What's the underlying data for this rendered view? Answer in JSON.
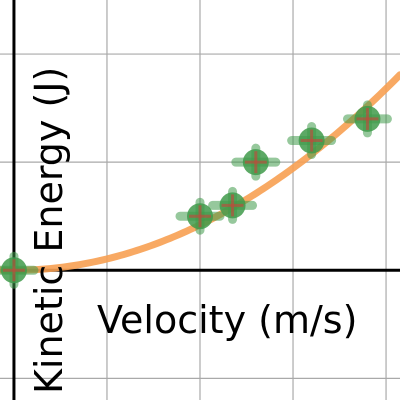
{
  "chart_data": {
    "type": "scatter",
    "xlabel": "Velocity (m/s)",
    "ylabel": "Kinetic Energy (J)",
    "xlim": [
      -0.15,
      4.15
    ],
    "ylim": [
      -1.2,
      2.5
    ],
    "grid": true,
    "grid_x": [
      1,
      2,
      3,
      4
    ],
    "grid_y": [
      -1,
      1,
      2
    ],
    "series": [
      {
        "values": [
          {
            "x": 0.0,
            "y": 0.0
          },
          {
            "x": 2.0,
            "y": 0.5
          },
          {
            "x": 2.35,
            "y": 0.6
          },
          {
            "x": 2.6,
            "y": 1.0
          },
          {
            "x": 3.2,
            "y": 1.2
          },
          {
            "x": 3.8,
            "y": 1.4
          }
        ]
      }
    ],
    "fit": {
      "kind": "quadratic",
      "coefficient": 0.105
    },
    "colors": {
      "marker": "#3f9a4a",
      "marker_cross": "#c8453a",
      "fit_line": "#f7a052",
      "grid": "#a9a9a9",
      "axis": "#000000"
    }
  }
}
